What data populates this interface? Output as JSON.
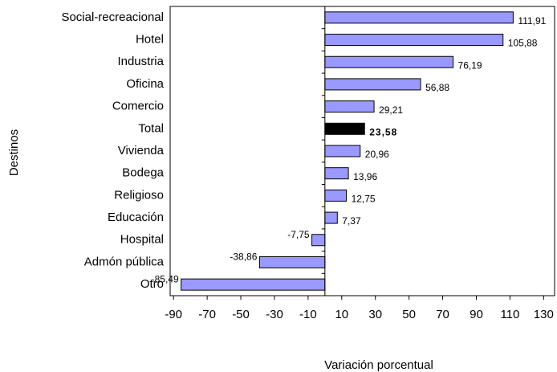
{
  "chart_data": {
    "type": "barh",
    "categories": [
      "Social-recreacional",
      "Hotel",
      "Industria",
      "Oficina",
      "Comercio",
      "Total",
      "Vivienda",
      "Bodega",
      "Religioso",
      "Educación",
      "Hospital",
      "Admón pública",
      "Otro"
    ],
    "values": [
      111.91,
      105.88,
      76.19,
      56.88,
      29.21,
      23.58,
      20.96,
      13.96,
      12.75,
      7.37,
      -7.75,
      -38.86,
      -85.49
    ],
    "value_labels": [
      "111,91",
      "105,88",
      "76,19",
      "56,88",
      "29,21",
      "23,58",
      "20,96",
      "13,96",
      "12,75",
      "7,37",
      "-7,75",
      "-38,86",
      "-85,49"
    ],
    "color": "#9999ff",
    "highlight": "Total",
    "highlight_color": "#000000",
    "xlabel": "Variación porcentual",
    "ylabel": "Destinos",
    "xlim": [
      -92,
      137
    ],
    "xticks": [
      -90,
      -70,
      -50,
      -30,
      -10,
      10,
      30,
      50,
      70,
      90,
      110,
      130
    ]
  }
}
